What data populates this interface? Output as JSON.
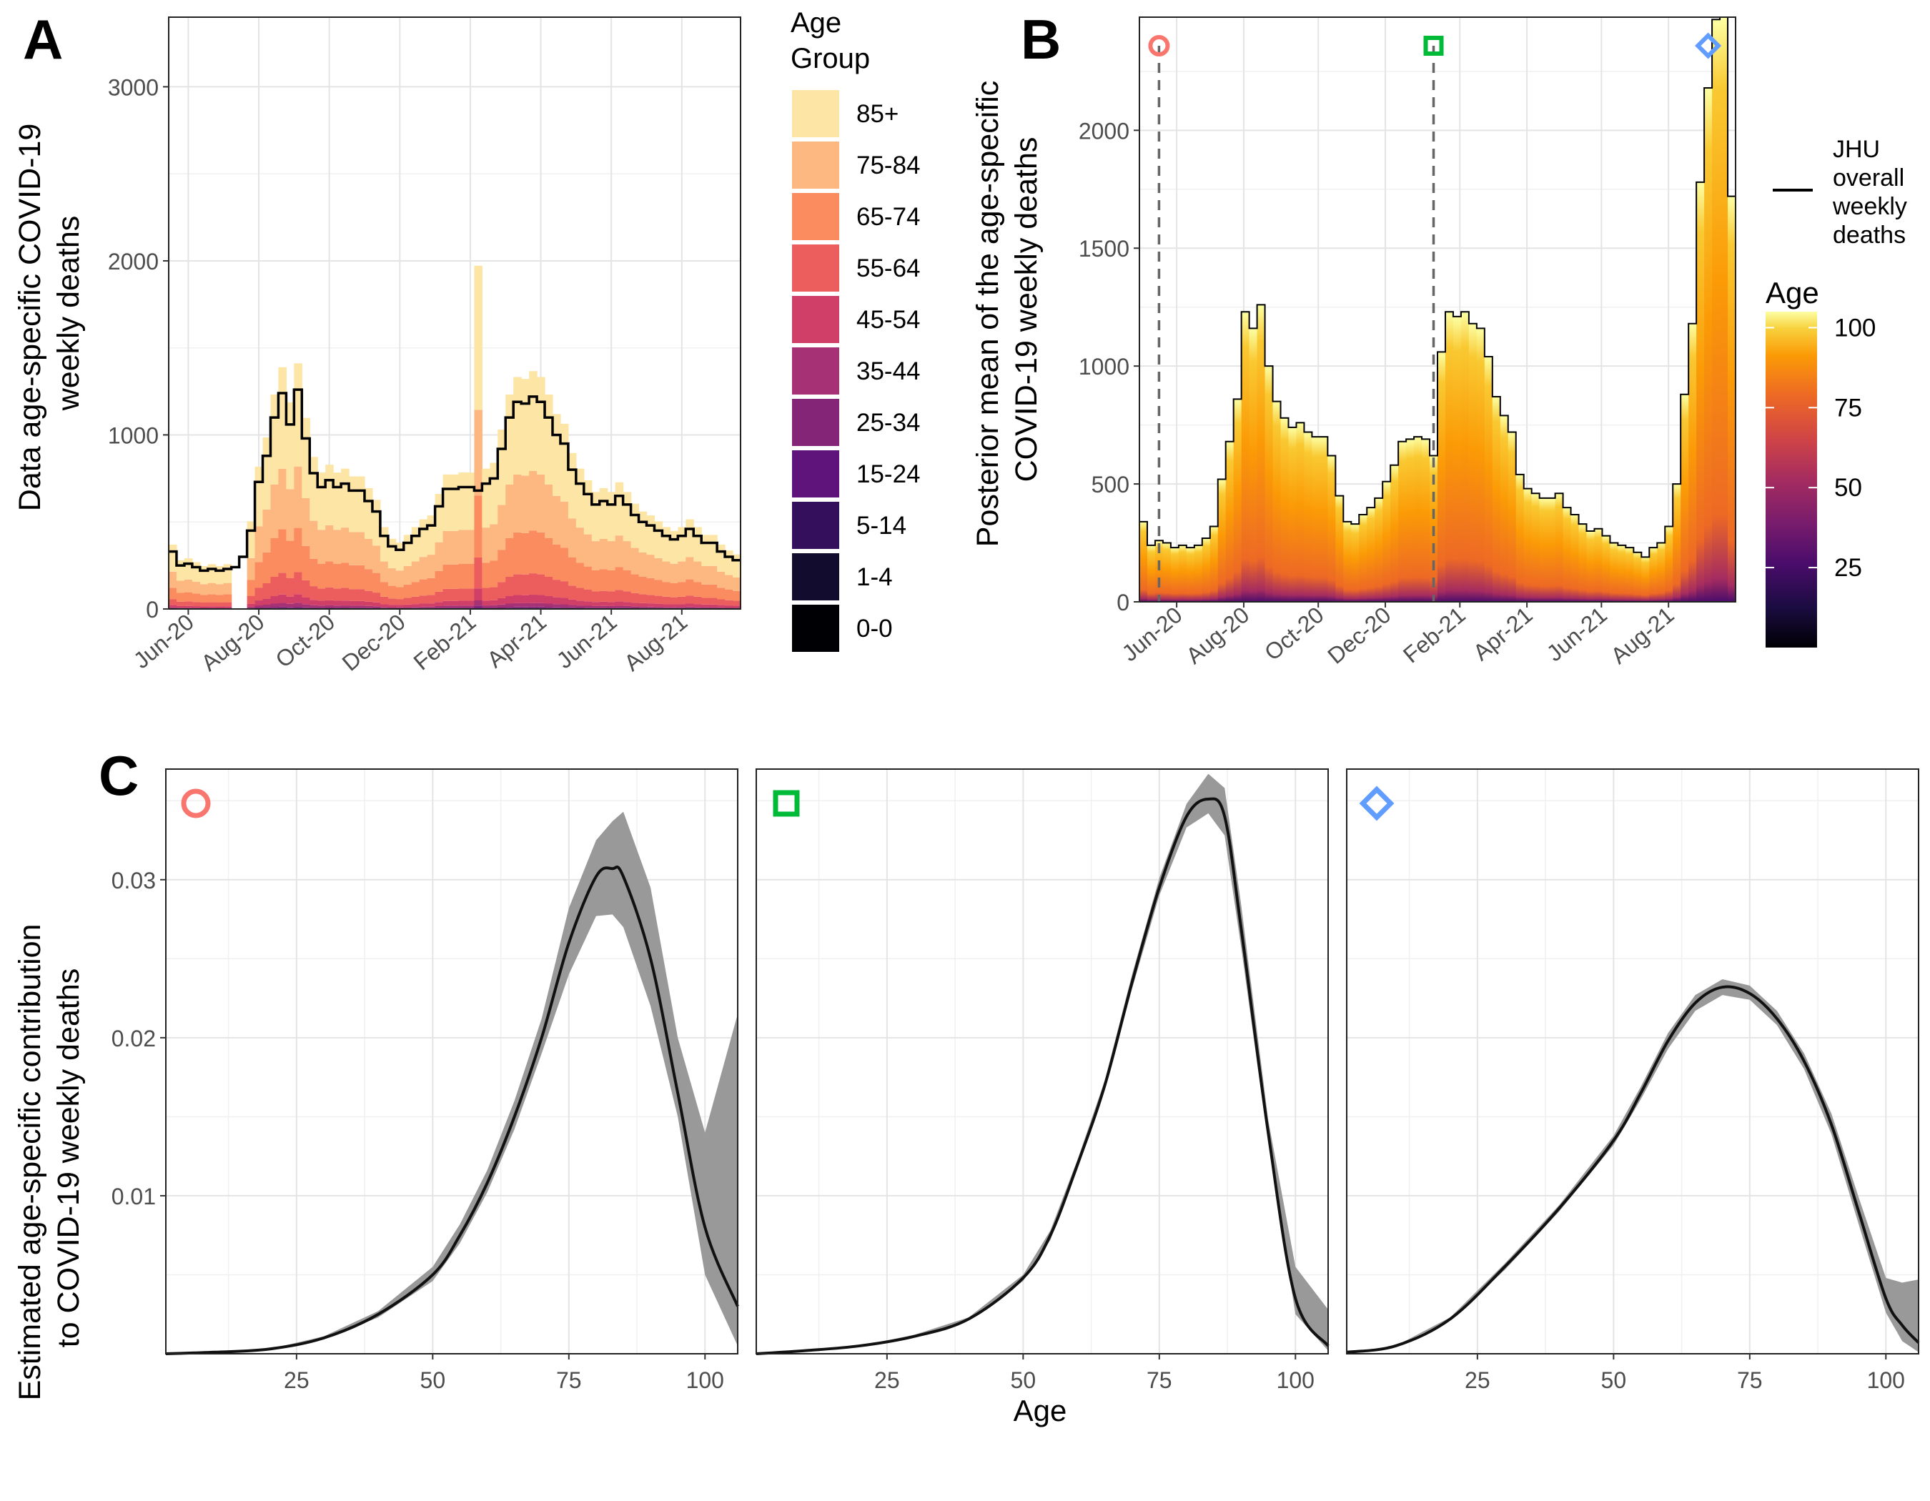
{
  "panels": {
    "A": "A",
    "B": "B",
    "C": "C"
  },
  "chart_data": [
    {
      "id": "A",
      "type": "bar",
      "stacked": true,
      "title": "",
      "ylabel": "Data age-specific COVID-19 weekly deaths",
      "ylabel_lines": [
        "Data age-specific COVID-19",
        "weekly deaths"
      ],
      "xlabel": "",
      "ylim": [
        0,
        3400
      ],
      "yticks": [
        0,
        1000,
        2000,
        3000
      ],
      "xticks": [
        "Jun-20",
        "Aug-20",
        "Oct-20",
        "Dec-20",
        "Feb-21",
        "Apr-21",
        "Jun-21",
        "Aug-21"
      ],
      "xtick_weeks": [
        2,
        11,
        20,
        29,
        38,
        47,
        56,
        65
      ],
      "weeks": 73,
      "legend_title": "Age Group",
      "legend_title_lines": [
        "Age",
        "Group"
      ],
      "groups": [
        "85+",
        "75-84",
        "65-74",
        "55-64",
        "45-54",
        "35-44",
        "25-34",
        "15-24",
        "5-14",
        "1-4",
        "0-0"
      ],
      "group_colors": [
        "#FDE5A6",
        "#FDB882",
        "#FB8C60",
        "#EC5D5E",
        "#D03F68",
        "#A63174",
        "#852578",
        "#5E147B",
        "#340F5B",
        "#120D2F",
        "#000004"
      ],
      "stack_shares": [
        0.42,
        0.25,
        0.18,
        0.09,
        0.035,
        0.015,
        0.006,
        0.002,
        0.001,
        0.0005,
        0.0005
      ],
      "jhu_label": "JHU overall weekly deaths",
      "jhu_weekly_deaths": [
        330,
        250,
        260,
        240,
        220,
        230,
        220,
        230,
        240,
        300,
        450,
        730,
        880,
        1100,
        1240,
        1060,
        1260,
        980,
        780,
        700,
        740,
        700,
        720,
        680,
        680,
        620,
        560,
        420,
        360,
        340,
        380,
        420,
        460,
        480,
        590,
        690,
        690,
        700,
        700,
        680,
        720,
        750,
        920,
        1100,
        1190,
        1180,
        1220,
        1190,
        1100,
        1000,
        950,
        800,
        720,
        660,
        600,
        620,
        600,
        650,
        600,
        540,
        500,
        480,
        450,
        420,
        400,
        420,
        460,
        420,
        380,
        380,
        330,
        300,
        280
      ]
    },
    {
      "id": "B",
      "type": "area",
      "ylabel": "Posterior mean of the age-specific COVID-19 weekly deaths",
      "ylabel_lines": [
        "Posterior mean of the age-specific",
        "COVID-19 weekly deaths"
      ],
      "ylim": [
        0,
        2480
      ],
      "yticks": [
        0,
        500,
        1000,
        1500,
        2000
      ],
      "xticks": [
        "Jun-20",
        "Aug-20",
        "Oct-20",
        "Dec-20",
        "Feb-21",
        "Apr-21",
        "Jun-21",
        "Aug-21"
      ],
      "weeks": 76,
      "colorbar_title": "Age",
      "colorbar_ticks": [
        25,
        50,
        75,
        100
      ],
      "colorbar_range": [
        0,
        105
      ],
      "legend_line_label_lines": [
        "JHU",
        "overall",
        "weekly",
        "deaths"
      ],
      "markers": [
        {
          "shape": "circle",
          "color": "#F8766D",
          "week": 2
        },
        {
          "shape": "square",
          "color": "#00BA38",
          "week": 37
        },
        {
          "shape": "diamond",
          "color": "#619CFF",
          "week": 72
        }
      ],
      "weekly_deaths": [
        340,
        240,
        260,
        250,
        230,
        240,
        230,
        240,
        270,
        320,
        520,
        680,
        860,
        1230,
        1160,
        1260,
        1000,
        850,
        780,
        740,
        760,
        720,
        700,
        700,
        620,
        450,
        340,
        330,
        370,
        400,
        440,
        510,
        580,
        680,
        690,
        700,
        690,
        620,
        1060,
        1230,
        1210,
        1230,
        1180,
        1160,
        1040,
        870,
        790,
        720,
        540,
        480,
        460,
        440,
        440,
        460,
        400,
        370,
        330,
        300,
        310,
        280,
        250,
        240,
        230,
        210,
        190,
        230,
        250,
        320,
        500,
        880,
        1180,
        1780,
        2180,
        2470,
        2480,
        1720
      ]
    }
  ],
  "panel_c": {
    "ylabel": "Estimated age-specific contribution to COVID-19 weekly deaths",
    "ylabel_lines": [
      "Estimated age-specific contribution",
      "to COVID-19 weekly deaths"
    ],
    "xlabel": "Age",
    "yticks": [
      0.01,
      0.02,
      0.03
    ],
    "ytick_labels": [
      "0.01",
      "0.02",
      "0.03"
    ],
    "ylim": [
      0,
      0.037
    ],
    "xticks": [
      25,
      50,
      75,
      100
    ],
    "xlim": [
      1,
      106
    ],
    "facets": [
      {
        "marker": "circle",
        "color": "#F8766D",
        "ages": [
          1,
          10,
          20,
          30,
          40,
          50,
          55,
          60,
          65,
          70,
          75,
          80,
          83,
          85,
          90,
          95,
          100,
          106
        ],
        "mean": [
          0,
          0.0001,
          0.0003,
          0.001,
          0.0025,
          0.005,
          0.0075,
          0.0108,
          0.015,
          0.02,
          0.026,
          0.0302,
          0.0307,
          0.0302,
          0.025,
          0.0165,
          0.008,
          0.003
        ],
        "lower": [
          0,
          0.0001,
          0.0003,
          0.0009,
          0.0023,
          0.0046,
          0.007,
          0.0102,
          0.0142,
          0.019,
          0.024,
          0.0277,
          0.0278,
          0.027,
          0.022,
          0.015,
          0.005,
          0.0005
        ],
        "upper": [
          0,
          0.0001,
          0.0003,
          0.0011,
          0.0027,
          0.0055,
          0.0082,
          0.0116,
          0.016,
          0.0212,
          0.0282,
          0.0325,
          0.0337,
          0.0343,
          0.0295,
          0.02,
          0.014,
          0.0215
        ]
      },
      {
        "marker": "square",
        "color": "#00BA38",
        "ages": [
          1,
          10,
          20,
          30,
          40,
          50,
          55,
          60,
          65,
          70,
          75,
          80,
          84,
          87,
          90,
          95,
          100,
          106
        ],
        "mean": [
          0,
          0.0002,
          0.0005,
          0.0011,
          0.0022,
          0.0048,
          0.0075,
          0.012,
          0.017,
          0.0235,
          0.0295,
          0.034,
          0.0351,
          0.034,
          0.027,
          0.014,
          0.0035,
          0.0005
        ],
        "lower": [
          0,
          0.0002,
          0.0005,
          0.0011,
          0.0021,
          0.0046,
          0.0072,
          0.0117,
          0.0167,
          0.0231,
          0.029,
          0.0333,
          0.0342,
          0.0328,
          0.0258,
          0.0133,
          0.0025,
          0.0002
        ],
        "upper": [
          0,
          0.0002,
          0.0005,
          0.0012,
          0.0023,
          0.005,
          0.0078,
          0.0123,
          0.0173,
          0.024,
          0.0301,
          0.0348,
          0.0367,
          0.0358,
          0.0285,
          0.0148,
          0.0055,
          0.0028
        ]
      },
      {
        "marker": "diamond",
        "color": "#619CFF",
        "ages": [
          1,
          10,
          20,
          30,
          40,
          50,
          55,
          60,
          65,
          70,
          75,
          80,
          85,
          90,
          95,
          100,
          103,
          106
        ],
        "mean": [
          0.0001,
          0.0005,
          0.0022,
          0.0055,
          0.0092,
          0.0135,
          0.0165,
          0.0198,
          0.0222,
          0.0232,
          0.0228,
          0.0212,
          0.0185,
          0.0145,
          0.009,
          0.0035,
          0.0018,
          0.0007
        ],
        "lower": [
          0.0001,
          0.0005,
          0.0021,
          0.0053,
          0.009,
          0.0132,
          0.0161,
          0.0193,
          0.0217,
          0.0227,
          0.0224,
          0.0208,
          0.018,
          0.0139,
          0.0082,
          0.0026,
          0.0008,
          0.0001
        ],
        "upper": [
          0.0001,
          0.0005,
          0.0023,
          0.0057,
          0.0094,
          0.0138,
          0.0169,
          0.0203,
          0.0227,
          0.0237,
          0.0233,
          0.0217,
          0.019,
          0.0152,
          0.0099,
          0.0048,
          0.0045,
          0.0047
        ]
      }
    ]
  }
}
